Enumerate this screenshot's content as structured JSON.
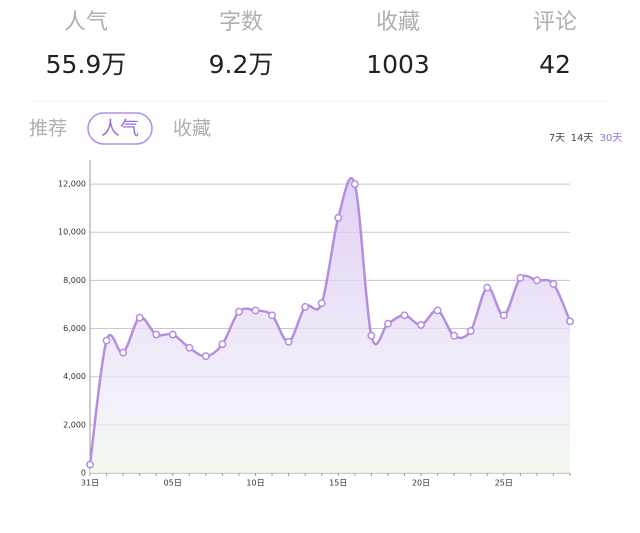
{
  "stats": [
    {
      "label": "人气",
      "value": "55.9万"
    },
    {
      "label": "字数",
      "value": "9.2万"
    },
    {
      "label": "收藏",
      "value": "1003"
    },
    {
      "label": "评论",
      "value": "42"
    }
  ],
  "tabs": {
    "items": [
      "推荐",
      "人气",
      "收藏"
    ],
    "selected_index": 1
  },
  "ranges": {
    "items": [
      "7天",
      "14天",
      "30天"
    ],
    "selected_index": 2
  },
  "chart_data": {
    "type": "line",
    "color": "#b58ee0",
    "categories": [
      "31日",
      null,
      null,
      null,
      null,
      "05日",
      null,
      null,
      null,
      null,
      "10日",
      null,
      null,
      null,
      null,
      "15日",
      null,
      null,
      null,
      null,
      "20日",
      null,
      null,
      null,
      null,
      "25日",
      null,
      null,
      null,
      null
    ],
    "values": [
      350,
      5500,
      5000,
      6450,
      5750,
      5750,
      5200,
      4850,
      5350,
      6700,
      6750,
      6550,
      5450,
      6900,
      7050,
      10600,
      12000,
      5700,
      6200,
      6550,
      6150,
      6750,
      5700,
      5900,
      7700,
      6550,
      8100,
      8000,
      7850,
      6300
    ],
    "ylim": [
      0,
      13000
    ],
    "yticks": [
      0,
      {
        "value": 2000,
        "label": "2,000"
      },
      {
        "value": 4000,
        "label": "4,000"
      },
      {
        "value": 6000,
        "label": "6,000"
      },
      {
        "value": 8000,
        "label": "8,000"
      },
      {
        "value": 10000,
        "label": "10,000"
      },
      {
        "value": 12000,
        "label": "12,000"
      }
    ],
    "grid": true
  }
}
